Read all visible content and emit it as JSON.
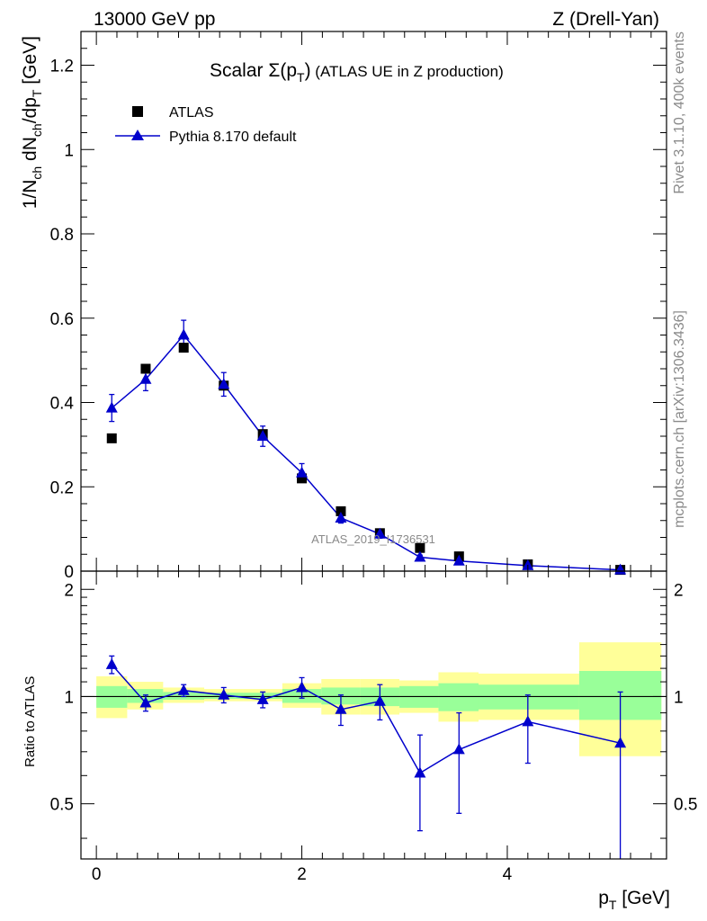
{
  "header": {
    "left": "13000 GeV pp",
    "right": "Z (Drell-Yan)"
  },
  "side_labels": {
    "top": "Rivet 3.1.10,  400k events",
    "bottom": "mcplots.cern.ch [arXiv:1306.3436]"
  },
  "watermark": "ATLAS_2019_I1736531",
  "colors": {
    "atlas": "#000000",
    "pythia": "#0000cc",
    "band_yellow": "#ffff99",
    "band_green": "#99ff99"
  },
  "chart_data": [
    {
      "type": "scatter",
      "title_main": "Scalar ",
      "title_sigma": "Σ(p",
      "title_sub": "T",
      "title_close": ")",
      "title_suffix": " (ATLAS UE in Z production)",
      "ylabel": "1/N_ch dN_ch/dp_T [GeV]",
      "ylabel_parts": {
        "a": "1/N",
        "a_sub": "ch",
        "b": " dN",
        "b_sub": "ch",
        "c": "/dp",
        "c_sub": "T",
        "d": " [GeV]"
      },
      "xlim": [
        -0.15,
        5.55
      ],
      "ylim": [
        0,
        1.28
      ],
      "yticks": [
        0,
        0.2,
        0.4,
        0.6,
        0.8,
        1,
        1.2
      ],
      "ytick_labels": [
        "0",
        "0.2",
        "0.4",
        "0.6",
        "0.8",
        "1",
        "1.2"
      ],
      "legend": [
        "ATLAS",
        "Pythia 8.170 default"
      ],
      "legend_position": "top-left",
      "series": [
        {
          "name": "ATLAS",
          "marker": "square",
          "x": [
            0.15,
            0.48,
            0.85,
            1.24,
            1.62,
            2.0,
            2.38,
            2.76,
            3.15,
            3.53,
            4.2,
            5.1
          ],
          "y": [
            0.315,
            0.48,
            0.53,
            0.44,
            0.325,
            0.22,
            0.142,
            0.09,
            0.055,
            0.035,
            0.016,
            0.003
          ]
        },
        {
          "name": "Pythia 8.170 default",
          "marker": "triangle",
          "x": [
            0.15,
            0.48,
            0.85,
            1.24,
            1.62,
            2.0,
            2.38,
            2.76,
            3.15,
            3.53,
            4.2,
            5.1
          ],
          "y": [
            0.387,
            0.455,
            0.56,
            0.443,
            0.32,
            0.233,
            0.126,
            0.088,
            0.033,
            0.024,
            0.013,
            0.003
          ],
          "yerr": [
            0.032,
            0.027,
            0.035,
            0.028,
            0.024,
            0.022,
            0.012,
            0.01,
            0.005,
            0.004,
            0.003,
            0.001
          ]
        }
      ]
    },
    {
      "type": "scatter",
      "ylabel": "Ratio to ATLAS",
      "xlabel_main": "p",
      "xlabel_sub": "T",
      "xlabel_unit": " [GeV]",
      "xlim": [
        -0.15,
        5.55
      ],
      "ylim": [
        0.35,
        2.25
      ],
      "yscale": "log",
      "yticks": [
        0.5,
        1,
        2
      ],
      "ytick_labels": [
        "0.5",
        "1",
        "2"
      ],
      "xticks": [
        0,
        2,
        4
      ],
      "xtick_labels": [
        "0",
        "2",
        "4"
      ],
      "reference_line": 1,
      "bands": {
        "x_edges": [
          0,
          0.3,
          0.65,
          1.05,
          1.43,
          1.81,
          2.19,
          2.57,
          2.95,
          3.33,
          3.72,
          4.7,
          5.5
        ],
        "yellow_low": [
          0.87,
          0.92,
          0.96,
          0.97,
          0.97,
          0.93,
          0.89,
          0.89,
          0.9,
          0.85,
          0.86,
          0.68
        ],
        "yellow_high": [
          1.14,
          1.1,
          1.06,
          1.05,
          1.05,
          1.09,
          1.12,
          1.12,
          1.11,
          1.17,
          1.16,
          1.42
        ],
        "green_low": [
          0.93,
          0.96,
          0.98,
          0.985,
          0.985,
          0.96,
          0.95,
          0.94,
          0.93,
          0.91,
          0.92,
          0.86
        ],
        "green_high": [
          1.07,
          1.05,
          1.03,
          1.025,
          1.025,
          1.05,
          1.06,
          1.06,
          1.07,
          1.09,
          1.08,
          1.18
        ]
      },
      "series": [
        {
          "name": "Pythia 8.170 default / ATLAS",
          "x": [
            0.15,
            0.48,
            0.85,
            1.24,
            1.62,
            2.0,
            2.38,
            2.76,
            3.15,
            3.53,
            4.2,
            5.1
          ],
          "y": [
            1.23,
            0.96,
            1.04,
            1.01,
            0.98,
            1.06,
            0.92,
            0.97,
            0.61,
            0.71,
            0.85,
            0.74
          ],
          "yerr_low": [
            0.07,
            0.05,
            0.04,
            0.05,
            0.05,
            0.07,
            0.09,
            0.11,
            0.19,
            0.24,
            0.2,
            0.42
          ],
          "yerr_high": [
            0.07,
            0.05,
            0.04,
            0.05,
            0.05,
            0.07,
            0.09,
            0.11,
            0.17,
            0.19,
            0.16,
            0.29
          ]
        }
      ]
    }
  ]
}
